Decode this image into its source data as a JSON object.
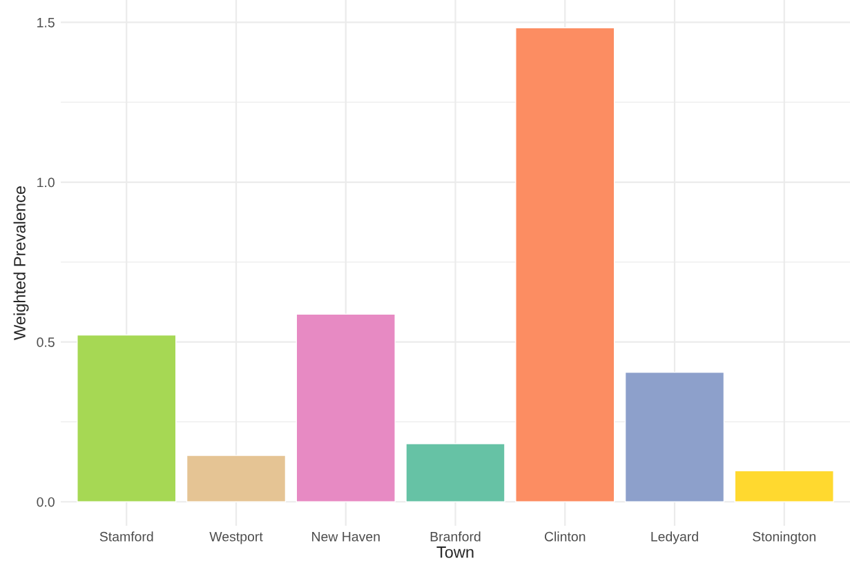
{
  "chart_data": {
    "type": "bar",
    "xlabel": "Town",
    "ylabel": "Weighted Prevalence",
    "categories": [
      "Stamford",
      "Westport",
      "New Haven",
      "Branford",
      "Clinton",
      "Ledyard",
      "Stonington"
    ],
    "values": [
      0.522,
      0.145,
      0.587,
      0.182,
      1.483,
      0.405,
      0.097
    ],
    "colors": [
      "#a6d854",
      "#e5c494",
      "#e78ac3",
      "#66c2a5",
      "#fc8d62",
      "#8da0cb",
      "#ffd92f"
    ],
    "ylim": [
      -0.075,
      1.57
    ],
    "yticks": [
      {
        "value": 0,
        "label": "0.0"
      },
      {
        "value": 0.5,
        "label": "0.5"
      },
      {
        "value": 1,
        "label": "1.0"
      },
      {
        "value": 1.5,
        "label": "1.5"
      }
    ],
    "grid": true,
    "legend": false
  }
}
